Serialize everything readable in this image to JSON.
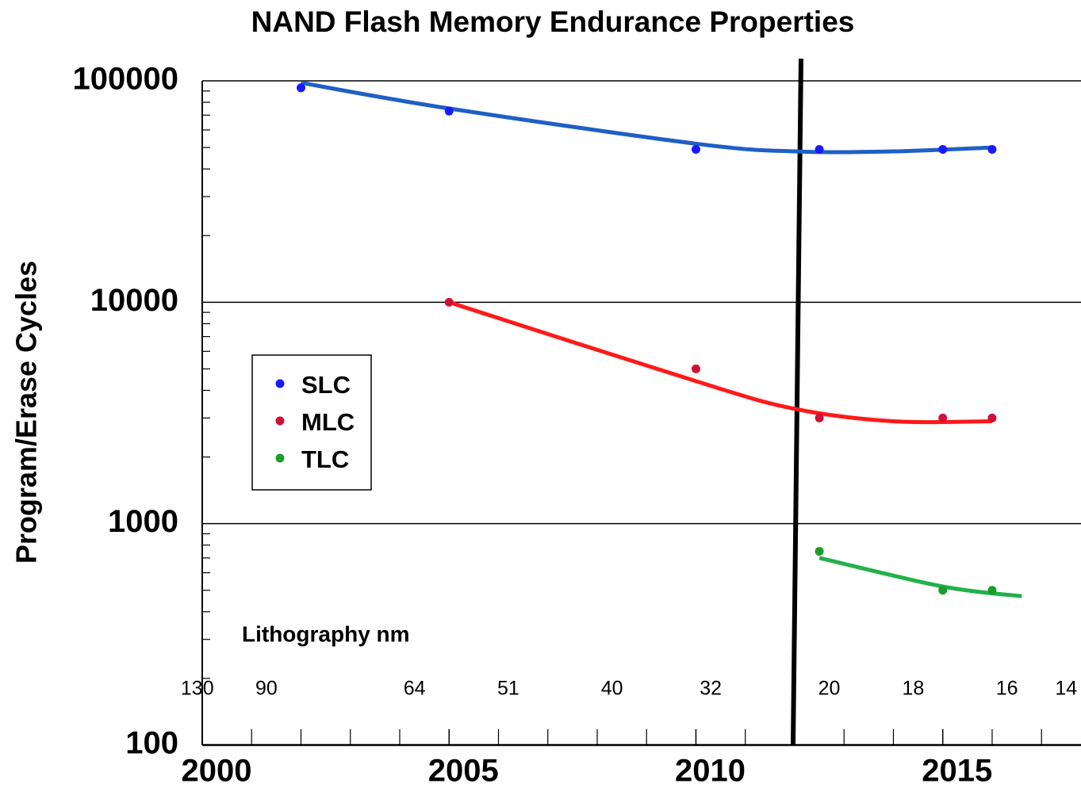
{
  "chart_data": {
    "type": "scatter",
    "title": "NAND Flash Memory Endurance Properties",
    "y_label": "Program/Erase Cycles",
    "log_y": true,
    "grid": true,
    "xlim": [
      2000,
      2017.8
    ],
    "xticks": [
      2000,
      2005,
      2010,
      2015
    ],
    "xminor_ticks": [
      2001,
      2002,
      2003,
      2004,
      2006,
      2007,
      2008,
      2009,
      2011,
      2012,
      2013,
      2014,
      2016,
      2017
    ],
    "ylim": [
      100,
      100000
    ],
    "yticks": [
      100,
      1000,
      10000,
      100000
    ],
    "yminor_ticks": [
      200,
      300,
      400,
      500,
      600,
      700,
      800,
      900,
      2000,
      3000,
      4000,
      5000,
      6000,
      7000,
      8000,
      9000,
      20000,
      30000,
      40000,
      50000,
      60000,
      70000,
      80000,
      90000
    ],
    "legend": "left",
    "series": [
      {
        "name": "SLC",
        "color": "#1a1aff",
        "line_color": "#1f5fc6",
        "x": [
          2002,
          2005,
          2010,
          2012.5,
          2015,
          2016
        ],
        "values": [
          93000,
          73000,
          49000,
          49000,
          49000,
          49000
        ],
        "trend_x": [
          2002,
          2005,
          2010,
          2012,
          2014,
          2016
        ],
        "trend_values": [
          98000,
          75000,
          52000,
          48000,
          48000,
          50000
        ]
      },
      {
        "name": "MLC",
        "color": "#d0103a",
        "line_color": "#ff1a1a",
        "x": [
          2005,
          2010,
          2012.5,
          2015,
          2016
        ],
        "values": [
          10000,
          5000,
          3000,
          3000,
          3000
        ],
        "trend_x": [
          2005,
          2010,
          2012,
          2014,
          2016
        ],
        "trend_values": [
          10000,
          4400,
          3300,
          2900,
          2900
        ]
      },
      {
        "name": "TLC",
        "color": "#1a9e2a",
        "line_color": "#22b04a",
        "x": [
          2012.5,
          2015,
          2016
        ],
        "values": [
          750,
          500,
          500
        ],
        "trend_x": [
          2012.5,
          2015,
          2016.6
        ],
        "trend_values": [
          700,
          520,
          470
        ]
      }
    ],
    "litho_title": "Lithography nm",
    "litho_labels": [
      "130",
      "90",
      "64",
      "51",
      "40",
      "32",
      "20",
      "18",
      "16",
      "14"
    ],
    "litho_x": [
      1999.9,
      2001.3,
      2004.3,
      2006.2,
      2008.3,
      2010.3,
      2012.7,
      2014.4,
      2016.3,
      2017.5
    ]
  }
}
